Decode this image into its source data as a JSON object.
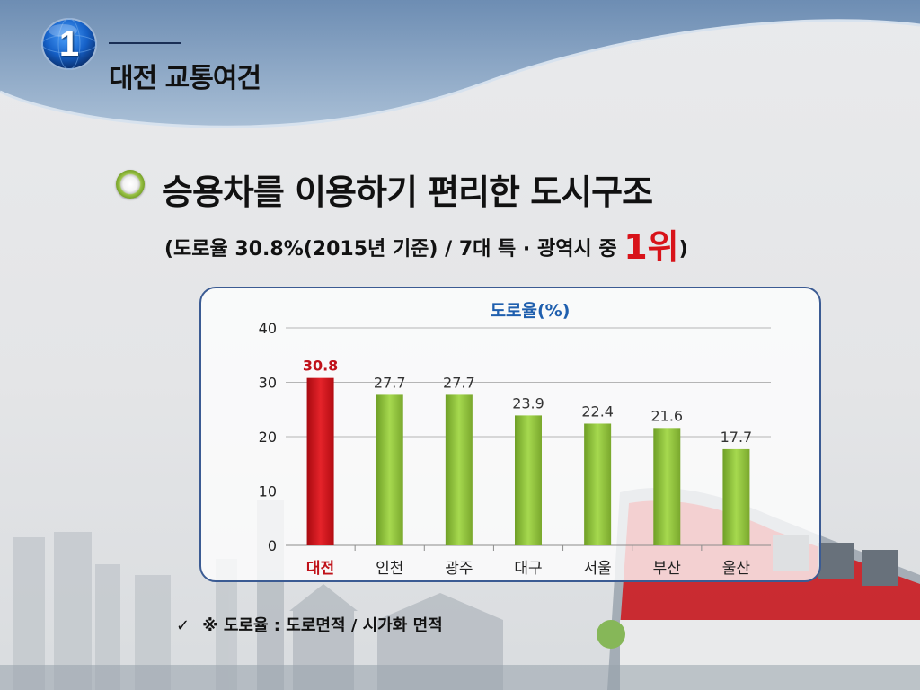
{
  "section": {
    "number": "1",
    "title": "대전 교통여건"
  },
  "headline": "승용차를 이용하기 편리한 도시구조",
  "subline": {
    "before": "(도로율 30.8%(2015년 기준) / 7대 특 · 광역시 중 ",
    "rank": "1위",
    "after": ")"
  },
  "footnote": {
    "check": "✓",
    "text": "※ 도로율 : 도로면적 / 시가화 면적"
  },
  "colors": {
    "highlight_bar": "#d41016",
    "default_bar": "#8cc63f",
    "highlight_label": "#c0121a",
    "title": "#1f5fae"
  },
  "icons": {
    "section_badge": "globe-badge-icon",
    "bullet": "green-orb-bullet-icon"
  },
  "chart_data": {
    "type": "bar",
    "title": "도로율(%)",
    "categories": [
      "대전",
      "인천",
      "광주",
      "대구",
      "서울",
      "부산",
      "울산"
    ],
    "values": [
      30.8,
      27.7,
      27.7,
      23.9,
      22.4,
      21.6,
      17.7
    ],
    "value_labels": [
      "30.8",
      "27.7",
      "27.7",
      "23.9",
      "22.4",
      "21.6",
      "17.7"
    ],
    "highlight_index": 0,
    "ylim": [
      0,
      40
    ],
    "yticks": [
      "0",
      "10",
      "20",
      "30",
      "40"
    ],
    "grid": true,
    "xlabel": "",
    "ylabel": ""
  }
}
